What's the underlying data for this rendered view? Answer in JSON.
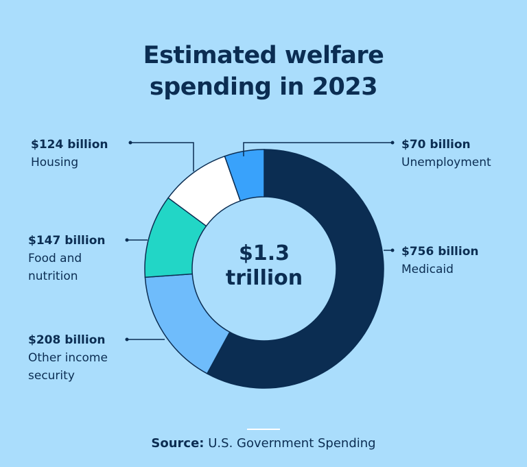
{
  "title_line1": "Estimated welfare",
  "title_line2": "spending in 2023",
  "center_label_line1": "$1.3",
  "center_label_line2": "trillion",
  "source_label": "Source:",
  "source_text": "U.S. Government Spending",
  "chart_data": {
    "type": "pie",
    "subtype": "donut",
    "title": "Estimated welfare spending in 2023",
    "total_label": "$1.3 trillion",
    "unit": "billion USD",
    "order": "clockwise from top",
    "slices": [
      {
        "name": "Medicaid",
        "value": 756,
        "value_label": "$756 billion",
        "color": "#0b2d52"
      },
      {
        "name": "Other income security",
        "value": 208,
        "value_label": "$208 billion",
        "color": "#6fbcfb"
      },
      {
        "name": "Food and nutrition",
        "value": 147,
        "value_label": "$147 billion",
        "color": "#22d6c6"
      },
      {
        "name": "Housing",
        "value": 124,
        "value_label": "$124 billion",
        "color": "#ffffff"
      },
      {
        "name": "Unemployment",
        "value": 70,
        "value_label": "$70 billion",
        "color": "#39a2fb"
      }
    ]
  }
}
